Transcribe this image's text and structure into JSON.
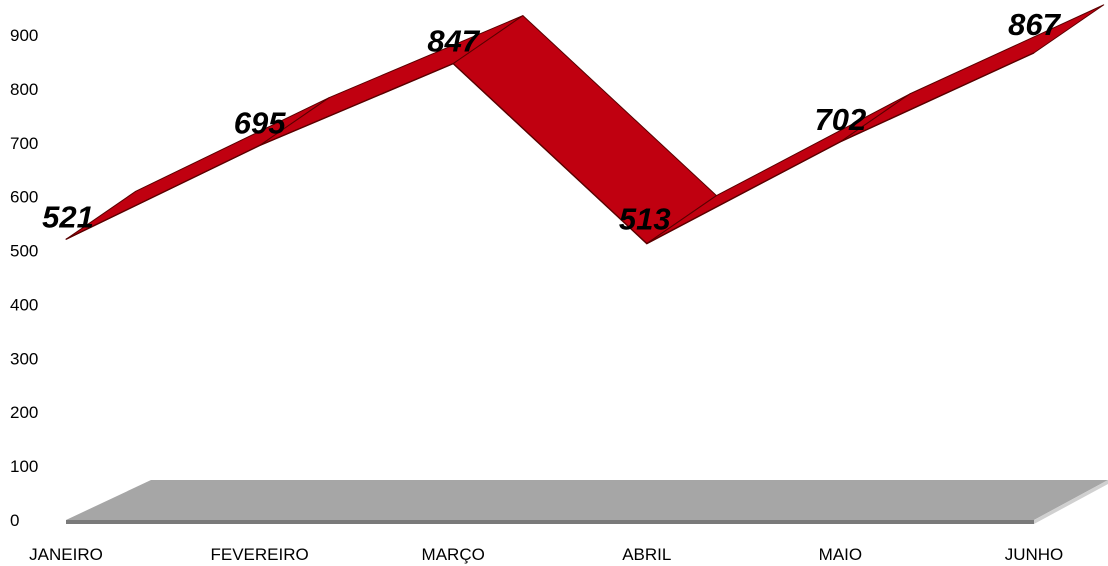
{
  "chart_data": {
    "type": "line",
    "categories": [
      "JANEIRO",
      "FEVEREIRO",
      "MARÇO",
      "ABRIL",
      "MAIO",
      "JUNHO"
    ],
    "values": [
      521,
      695,
      847,
      513,
      702,
      867
    ],
    "ylim": [
      0,
      900
    ],
    "yticks": [
      0,
      100,
      200,
      300,
      400,
      500,
      600,
      700,
      800,
      900
    ],
    "ytick_labels": [
      "0",
      "100",
      "200",
      "300",
      "400",
      "500",
      "600",
      "700",
      "800",
      "900"
    ],
    "data_labels": [
      "521",
      "695",
      "847",
      "513",
      "702",
      "867"
    ],
    "grid": false,
    "legend": "none",
    "style": "3d-ribbon",
    "colors": {
      "ribbon_face": "#c00010",
      "ribbon_edge": "#5a0000",
      "floor_top": "#a6a6a6",
      "floor_front": "#7a7a7a",
      "floor_side": "#d0d0d0"
    }
  }
}
